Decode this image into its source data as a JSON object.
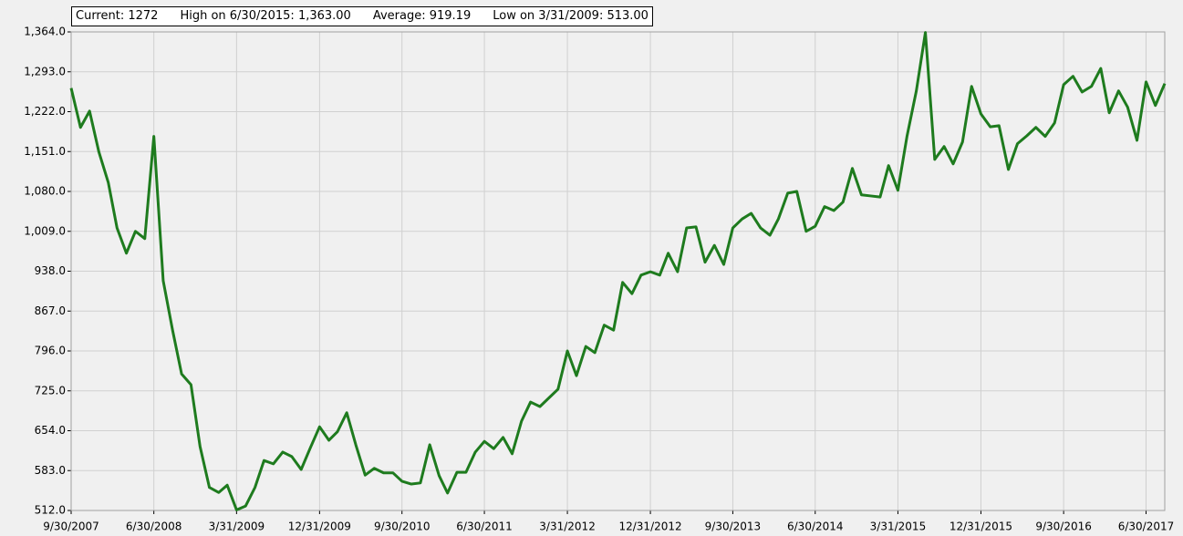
{
  "chart_data": {
    "type": "line",
    "summary": [
      "Current: 1272",
      "High on 6/30/2015: 1,363.00",
      "Average: 919.19",
      "Low on 3/31/2009: 513.00"
    ],
    "color": "#1e7b1e",
    "x": [
      "9/30/2007",
      "10/31/2007",
      "11/30/2007",
      "12/31/2007",
      "1/31/2008",
      "2/29/2008",
      "3/31/2008",
      "4/30/2008",
      "5/31/2008",
      "6/30/2008",
      "7/31/2008",
      "8/31/2008",
      "9/30/2008",
      "10/31/2008",
      "11/30/2008",
      "12/31/2008",
      "1/31/2009",
      "2/28/2009",
      "3/31/2009",
      "4/30/2009",
      "5/31/2009",
      "6/30/2009",
      "7/31/2009",
      "8/31/2009",
      "9/30/2009",
      "10/31/2009",
      "11/30/2009",
      "12/31/2009",
      "1/31/2010",
      "2/28/2010",
      "3/31/2010",
      "4/30/2010",
      "5/31/2010",
      "6/30/2010",
      "7/31/2010",
      "8/31/2010",
      "9/30/2010",
      "10/31/2010",
      "11/30/2010",
      "12/31/2010",
      "1/31/2011",
      "2/28/2011",
      "3/31/2011",
      "4/30/2011",
      "5/31/2011",
      "6/30/2011",
      "7/31/2011",
      "8/31/2011",
      "9/30/2011",
      "10/31/2011",
      "11/30/2011",
      "12/31/2011",
      "1/31/2012",
      "2/29/2012",
      "3/31/2012",
      "4/30/2012",
      "5/31/2012",
      "6/30/2012",
      "7/31/2012",
      "8/31/2012",
      "9/30/2012",
      "10/31/2012",
      "11/30/2012",
      "12/31/2012",
      "1/31/2013",
      "2/28/2013",
      "3/31/2013",
      "4/30/2013",
      "5/31/2013",
      "6/30/2013",
      "7/31/2013",
      "8/31/2013",
      "9/30/2013",
      "10/31/2013",
      "11/30/2013",
      "12/31/2013",
      "1/31/2014",
      "2/28/2014",
      "3/31/2014",
      "4/30/2014",
      "5/31/2014",
      "6/30/2014",
      "7/31/2014",
      "8/31/2014",
      "9/30/2014",
      "10/31/2014",
      "11/30/2014",
      "12/31/2014",
      "1/31/2015",
      "2/28/2015",
      "3/31/2015",
      "4/30/2015",
      "5/31/2015",
      "6/30/2015",
      "7/31/2015",
      "8/31/2015",
      "9/30/2015",
      "10/31/2015",
      "11/30/2015",
      "12/31/2015",
      "1/31/2016",
      "2/29/2016",
      "3/31/2016",
      "4/30/2016",
      "5/31/2016",
      "6/30/2016",
      "7/31/2016",
      "8/31/2016",
      "9/30/2016",
      "10/31/2016",
      "11/30/2016",
      "12/31/2016",
      "1/31/2017",
      "2/28/2017",
      "3/31/2017",
      "4/30/2017",
      "5/31/2017",
      "6/30/2017",
      "7/31/2017",
      "8/31/2017"
    ],
    "values": [
      1264,
      1194,
      1223,
      1150,
      1096,
      1015,
      970,
      1009,
      996,
      1178,
      921,
      833,
      755,
      736,
      626,
      553,
      544,
      557,
      513,
      520,
      553,
      601,
      595,
      616,
      608,
      585,
      623,
      661,
      637,
      652,
      686,
      629,
      575,
      587,
      579,
      579,
      564,
      559,
      561,
      629,
      574,
      543,
      580,
      580,
      616,
      635,
      622,
      642,
      613,
      671,
      705,
      697,
      713,
      728,
      796,
      752,
      804,
      793,
      842,
      833,
      918,
      898,
      931,
      937,
      931,
      970,
      937,
      1015,
      1017,
      954,
      984,
      950,
      1015,
      1031,
      1041,
      1015,
      1002,
      1031,
      1077,
      1080,
      1009,
      1018,
      1053,
      1046,
      1061,
      1121,
      1074,
      1072,
      1070,
      1126,
      1082,
      1178,
      1259,
      1363,
      1137,
      1160,
      1129,
      1168,
      1267,
      1218,
      1195,
      1197,
      1119,
      1165,
      1179,
      1194,
      1178,
      1202,
      1270,
      1285,
      1257,
      1267,
      1299,
      1220,
      1259,
      1230,
      1171,
      1275,
      1233,
      1272
    ],
    "xlim": [
      "9/30/2007",
      "8/31/2017"
    ],
    "xticks": [
      "9/30/2007",
      "6/30/2008",
      "3/31/2009",
      "12/31/2009",
      "9/30/2010",
      "6/30/2011",
      "3/31/2012",
      "12/31/2012",
      "9/30/2013",
      "6/30/2014",
      "3/31/2015",
      "12/31/2015",
      "9/30/2016",
      "6/30/2017"
    ],
    "ylim": [
      512,
      1364
    ],
    "yticks": [
      {
        "value": 512,
        "label": "512.0"
      },
      {
        "value": 583,
        "label": "583.0"
      },
      {
        "value": 654,
        "label": "654.0"
      },
      {
        "value": 725,
        "label": "725.0"
      },
      {
        "value": 796,
        "label": "796.0"
      },
      {
        "value": 867,
        "label": "867.0"
      },
      {
        "value": 938,
        "label": "938.0"
      },
      {
        "value": 1009,
        "label": "1,009.0"
      },
      {
        "value": 1080,
        "label": "1,080.0"
      },
      {
        "value": 1151,
        "label": "1,151.0"
      },
      {
        "value": 1222,
        "label": "1,222.0"
      },
      {
        "value": 1293,
        "label": "1,293.0"
      },
      {
        "value": 1364,
        "label": "1,364.0"
      }
    ],
    "grid": true
  }
}
